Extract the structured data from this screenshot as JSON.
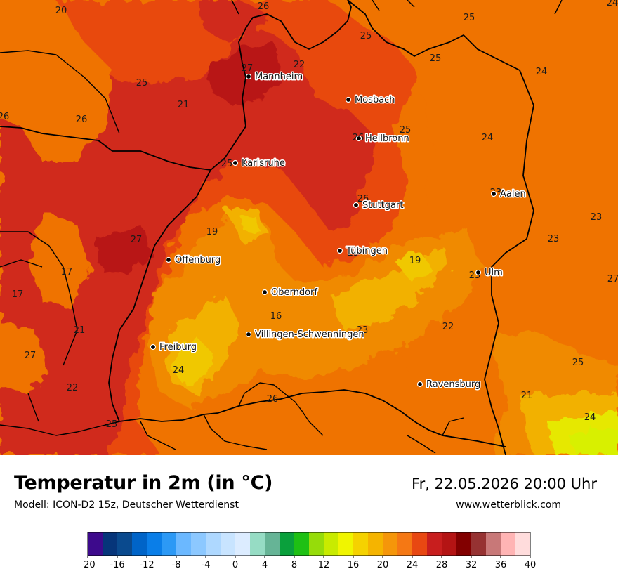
{
  "title": "Temperatur in 2m (in °C)",
  "model": "Modell: ICON-D2 15z, Deutscher Wetterdienst",
  "datetime": "Fr, 22.05.2026 20:00 Uhr",
  "website": "www.wetterblick.com",
  "colors": {
    "t16": "#f0c800",
    "t18": "#f2b100",
    "t20": "#f08a00",
    "t22": "#ef7300",
    "t24": "#e84810",
    "t26": "#d02a1a",
    "t28": "#b81414"
  },
  "cities": [
    {
      "name": "Mannheim"
    },
    {
      "name": "Mosbach"
    },
    {
      "name": "Heilbronn"
    },
    {
      "name": "Karlsruhe"
    },
    {
      "name": "Aalen"
    },
    {
      "name": "Stuttgart"
    },
    {
      "name": "Tübingen"
    },
    {
      "name": "Offenburg"
    },
    {
      "name": "Ulm"
    },
    {
      "name": "Oberndorf"
    },
    {
      "name": "Villingen-Schwenningen"
    },
    {
      "name": "Freiburg"
    },
    {
      "name": "Ravensburg"
    }
  ],
  "value_labels": [
    "20",
    "26",
    "25",
    "24",
    "27",
    "22",
    "25",
    "25",
    "24",
    "25",
    "21",
    "26",
    "26",
    "25",
    "26",
    "24",
    "25",
    "26",
    "23",
    "19",
    "23",
    "27",
    "17",
    "19",
    "23",
    "25",
    "27",
    "23",
    "17",
    "16",
    "27",
    "22",
    "23",
    "21",
    "24",
    "25",
    "22",
    "26",
    "21",
    "25",
    "24"
  ],
  "legend": {
    "tick_labels": [
      "-20",
      "-16",
      "-12",
      "-8",
      "-4",
      "0",
      "4",
      "8",
      "12",
      "16",
      "20",
      "24",
      "28",
      "32",
      "36",
      "40"
    ],
    "colors": [
      "#3d0a8c",
      "#06357a",
      "#0a4a8e",
      "#0064c8",
      "#0a7ee8",
      "#2c99f5",
      "#6bb8ff",
      "#8cc8ff",
      "#aed8ff",
      "#c8e4ff",
      "#dcecff",
      "#96dcc4",
      "#66b496",
      "#0aa03c",
      "#1ec014",
      "#96dc0a",
      "#c8eb00",
      "#f0f500",
      "#f5d200",
      "#f5b400",
      "#f5960a",
      "#f57814",
      "#e84812",
      "#c81e1e",
      "#b41414",
      "#820000",
      "#963232",
      "#c87878",
      "#ffb4b4",
      "#ffdcdc"
    ]
  }
}
